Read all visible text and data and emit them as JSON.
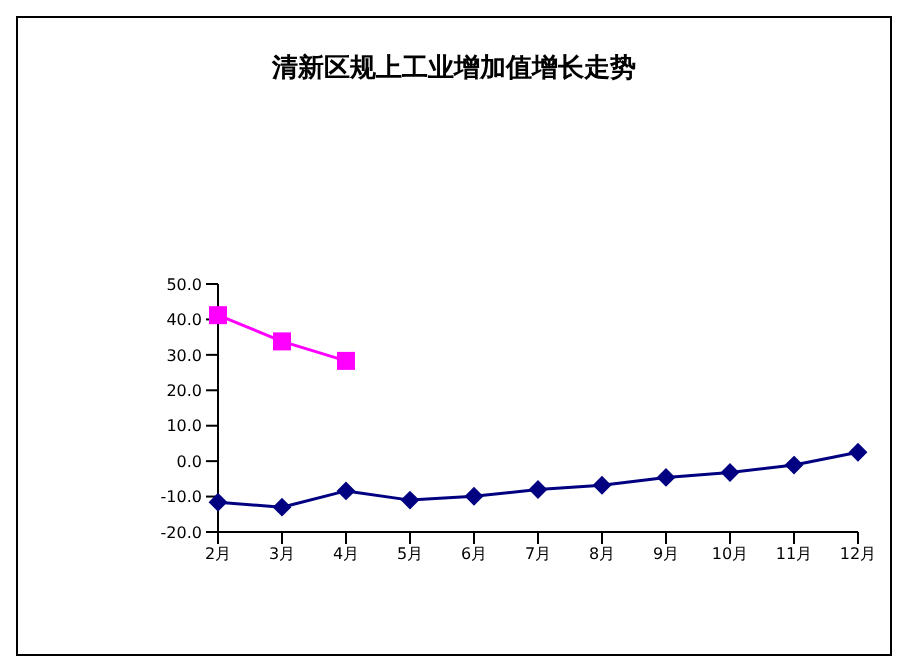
{
  "chart_data": {
    "type": "line",
    "title": "清新区规上工业增加值增长走势",
    "categories": [
      "2月",
      "3月",
      "4月",
      "5月",
      "6月",
      "7月",
      "8月",
      "9月",
      "10月",
      "11月",
      "12月"
    ],
    "series": [
      {
        "color": "#000080",
        "marker": "diamond",
        "values": [
          -11.6,
          -13.0,
          -8.4,
          -11.0,
          -9.9,
          -8.0,
          -6.8,
          -4.6,
          -3.2,
          -1.1,
          2.5
        ]
      },
      {
        "color": "#ff00ff",
        "marker": "square",
        "values": [
          41.2,
          33.8,
          28.3,
          null,
          null,
          null,
          null,
          null,
          null,
          null,
          null
        ]
      }
    ],
    "ylim": [
      -20,
      50
    ],
    "yticks": [
      {
        "value": -20,
        "label": "-20.0"
      },
      {
        "value": -10,
        "label": "-10.0"
      },
      {
        "value": 0,
        "label": "0.0"
      },
      {
        "value": 10,
        "label": "10.0"
      },
      {
        "value": 20,
        "label": "20.0"
      },
      {
        "value": 30,
        "label": "30.0"
      },
      {
        "value": 40,
        "label": "40.0"
      },
      {
        "value": 50,
        "label": "50.0"
      }
    ],
    "grid": false
  }
}
